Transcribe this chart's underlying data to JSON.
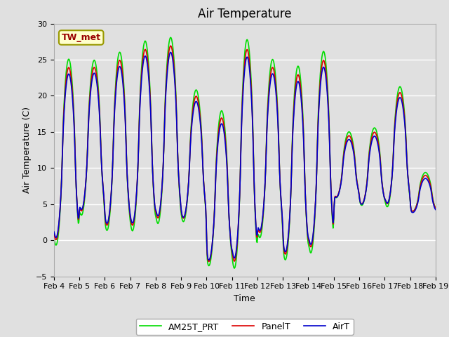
{
  "title": "Air Temperature",
  "ylabel": "Air Temperature (C)",
  "xlabel": "Time",
  "ylim": [
    -5,
    30
  ],
  "yticks": [
    -5,
    0,
    5,
    10,
    15,
    20,
    25,
    30
  ],
  "date_labels": [
    "Feb 4",
    "Feb 5",
    "Feb 6",
    "Feb 7",
    "Feb 8",
    "Feb 9",
    "Feb 10",
    "Feb 11",
    "Feb 12",
    "Feb 13",
    "Feb 14",
    "Feb 15",
    "Feb 16",
    "Feb 17",
    "Feb 18",
    "Feb 19"
  ],
  "annotation_text": "TW_met",
  "annotation_box_color": "#ffffcc",
  "annotation_text_color": "#990000",
  "annotation_border_color": "#999900",
  "line_colors": {
    "PanelT": "#dd0000",
    "AirT": "#0000cc",
    "AM25T_PRT": "#00dd00"
  },
  "line_widths": {
    "PanelT": 1.2,
    "AirT": 1.2,
    "AM25T_PRT": 1.2
  },
  "bg_color": "#e0e0e0",
  "grid_color": "#ffffff",
  "title_fontsize": 12,
  "label_fontsize": 9,
  "tick_fontsize": 8,
  "daily_max": [
    24,
    24,
    25,
    26.5,
    27,
    20,
    17,
    26.5,
    24,
    23,
    25,
    14.5,
    15,
    20.5,
    9,
    8
  ],
  "daily_min": [
    0,
    4,
    2,
    2,
    3,
    3,
    -3,
    -3,
    1,
    -2,
    -1,
    6,
    5,
    5,
    4,
    5
  ],
  "peak_hour": 14,
  "n_per_day": 48
}
